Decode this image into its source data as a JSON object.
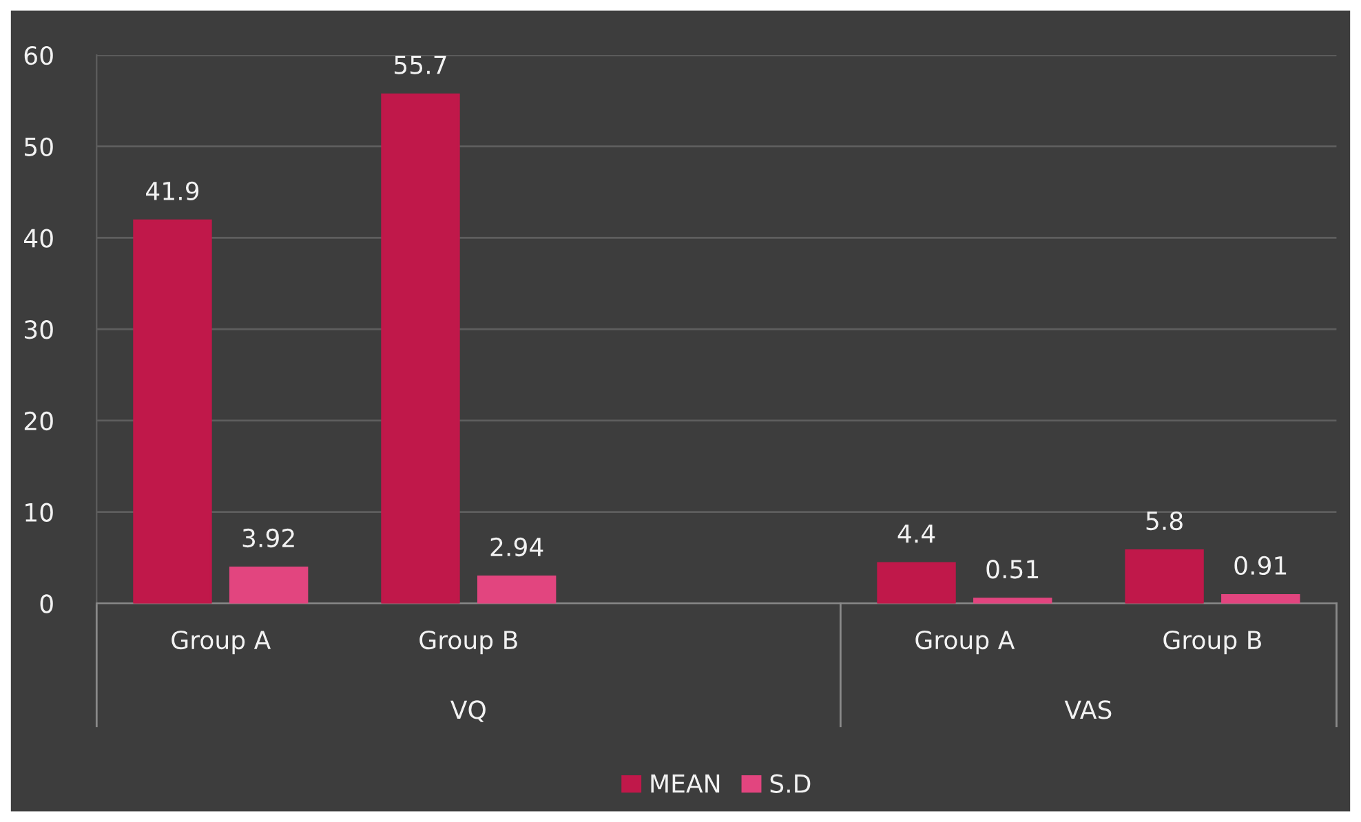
{
  "chart_data": {
    "type": "bar",
    "categories": [
      "Group A",
      "Group B",
      null,
      "Group A",
      "Group B"
    ],
    "annotations": [
      "VQ",
      "VAS"
    ],
    "series": [
      {
        "name": "MEAN",
        "color": "#c0184a",
        "values": [
          41.9,
          55.7,
          null,
          4.4,
          5.8
        ]
      },
      {
        "name": "S.D",
        "color": "#e2457f",
        "values": [
          3.92,
          2.94,
          null,
          0.51,
          0.91
        ]
      }
    ],
    "ylim": [
      0,
      60
    ],
    "yticks": [
      0,
      10,
      20,
      30,
      40,
      50,
      60
    ],
    "grid": "y",
    "legend": "bottom",
    "data_labels": true
  }
}
